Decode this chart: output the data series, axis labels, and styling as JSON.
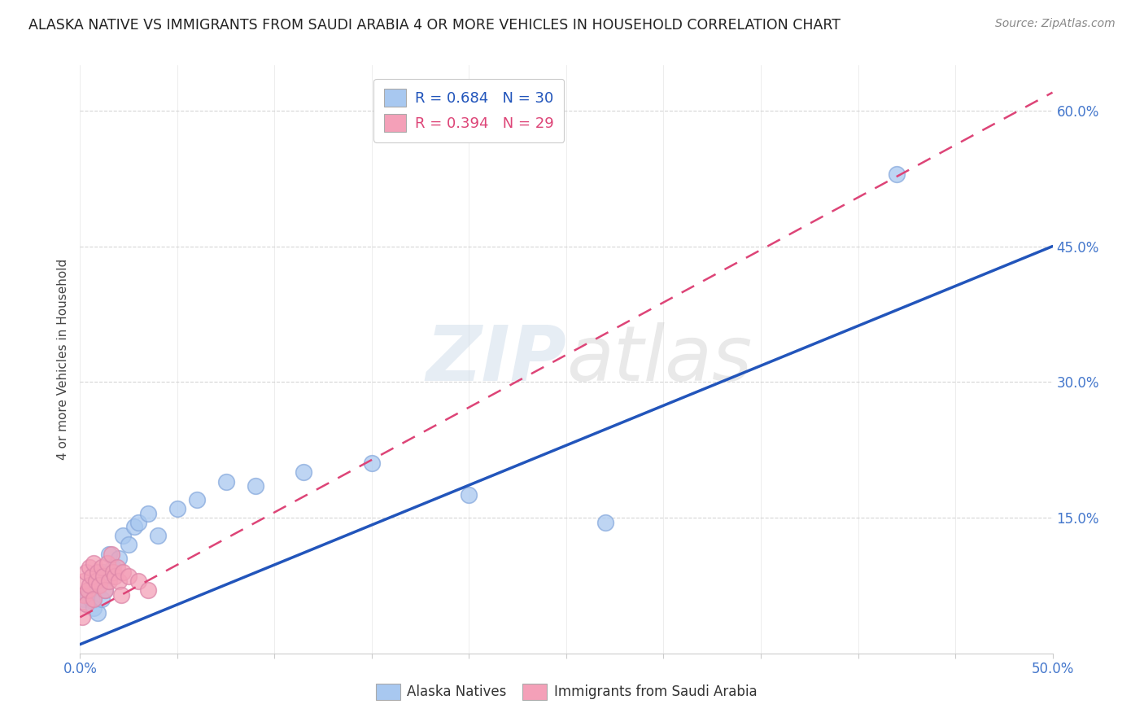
{
  "title": "ALASKA NATIVE VS IMMIGRANTS FROM SAUDI ARABIA 4 OR MORE VEHICLES IN HOUSEHOLD CORRELATION CHART",
  "source": "Source: ZipAtlas.com",
  "ylabel": "4 or more Vehicles in Household",
  "xlim": [
    0.0,
    0.5
  ],
  "ylim": [
    0.0,
    0.65
  ],
  "background_color": "#ffffff",
  "watermark_top": "ZIP",
  "watermark_bot": "atlas",
  "alaska_R": 0.684,
  "alaska_N": 30,
  "saudi_R": 0.394,
  "saudi_N": 29,
  "alaska_color": "#a8c8f0",
  "saudi_color": "#f4a0b8",
  "alaska_line_color": "#2255bb",
  "saudi_line_color": "#dd4477",
  "legend_label1": "Alaska Natives",
  "legend_label2": "Immigrants from Saudi Arabia",
  "alaska_x": [
    0.002,
    0.003,
    0.004,
    0.005,
    0.006,
    0.007,
    0.008,
    0.009,
    0.01,
    0.011,
    0.012,
    0.013,
    0.015,
    0.017,
    0.02,
    0.022,
    0.025,
    0.028,
    0.03,
    0.035,
    0.04,
    0.05,
    0.06,
    0.075,
    0.09,
    0.115,
    0.15,
    0.2,
    0.27,
    0.42
  ],
  "alaska_y": [
    0.06,
    0.055,
    0.065,
    0.07,
    0.058,
    0.05,
    0.08,
    0.045,
    0.075,
    0.06,
    0.09,
    0.07,
    0.11,
    0.095,
    0.105,
    0.13,
    0.12,
    0.14,
    0.145,
    0.155,
    0.13,
    0.16,
    0.17,
    0.19,
    0.185,
    0.2,
    0.21,
    0.175,
    0.145,
    0.53
  ],
  "saudi_x": [
    0.001,
    0.002,
    0.002,
    0.003,
    0.003,
    0.004,
    0.005,
    0.005,
    0.006,
    0.007,
    0.007,
    0.008,
    0.009,
    0.01,
    0.011,
    0.012,
    0.013,
    0.014,
    0.015,
    0.016,
    0.017,
    0.018,
    0.019,
    0.02,
    0.021,
    0.022,
    0.025,
    0.03,
    0.035
  ],
  "saudi_y": [
    0.04,
    0.065,
    0.08,
    0.055,
    0.09,
    0.07,
    0.075,
    0.095,
    0.085,
    0.06,
    0.1,
    0.08,
    0.09,
    0.075,
    0.095,
    0.085,
    0.07,
    0.1,
    0.08,
    0.11,
    0.09,
    0.085,
    0.095,
    0.08,
    0.065,
    0.09,
    0.085,
    0.08,
    0.07
  ],
  "alaska_line_x0": 0.0,
  "alaska_line_y0": 0.01,
  "alaska_line_x1": 0.5,
  "alaska_line_y1": 0.45,
  "saudi_line_x0": 0.0,
  "saudi_line_y0": 0.04,
  "saudi_line_x1": 0.5,
  "saudi_line_y1": 0.62
}
